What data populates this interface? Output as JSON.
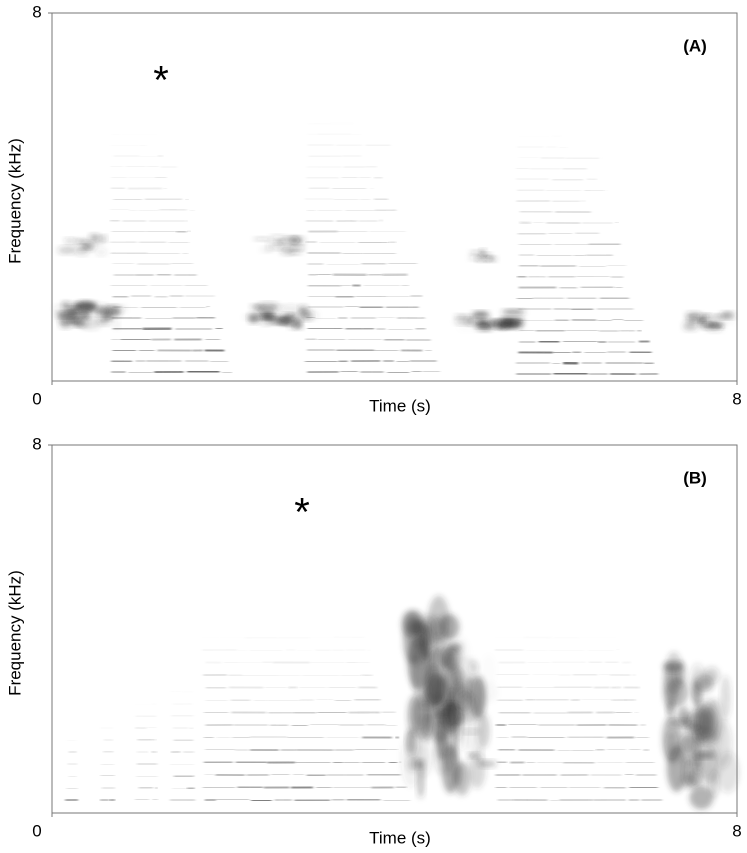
{
  "chart_data": [
    {
      "type": "spectrogram",
      "panel_label": "(A)",
      "annotation": "*",
      "x_label": "Time (s)",
      "y_label": "Frequency (kHz)",
      "xlim": [
        0,
        8
      ],
      "ylim": [
        0,
        8
      ],
      "xticks": [
        0,
        8
      ],
      "yticks": [
        8
      ]
    },
    {
      "type": "spectrogram",
      "panel_label": "(B)",
      "annotation": "*",
      "x_label": "Time (s)",
      "y_label": "Frequency (kHz)",
      "xlim": [
        0,
        8
      ],
      "ylim": [
        0,
        8
      ],
      "xticks": [
        0,
        8
      ],
      "yticks": [
        8
      ]
    }
  ]
}
